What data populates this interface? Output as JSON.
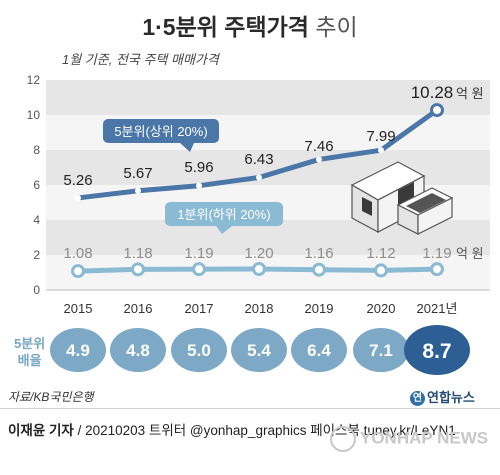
{
  "title": {
    "bold": "1·5분위 주택가격",
    "light": "추이"
  },
  "subtitle": "1월 기준, 전국 주택 매매가격",
  "value_unit": "억 원",
  "ratio_label": [
    "5분위",
    "배율"
  ],
  "source": "자료/KB국민은행",
  "brand": {
    "logo": "연",
    "name": "연합뉴스"
  },
  "credit": {
    "author": "이재윤 기자",
    "rest": " / 20210203   트위터 @yonhap_graphics  페이스북 tuney.kr/LeYN1"
  },
  "watermark": "YONHAP NEWS",
  "chart_data": {
    "type": "line",
    "categories": [
      "2015",
      "2016",
      "2017",
      "2018",
      "2019",
      "2020",
      "2021년"
    ],
    "series": [
      {
        "name": "5분위(상위 20%)",
        "values": [
          5.26,
          5.67,
          5.96,
          6.43,
          7.46,
          7.99,
          10.28
        ],
        "labels": [
          "5.26",
          "5.67",
          "5.96",
          "6.43",
          "7.46",
          "7.99",
          "10.28"
        ],
        "color": "#4a76a8"
      },
      {
        "name": "1분위(하위 20%)",
        "values": [
          1.08,
          1.18,
          1.19,
          1.2,
          1.16,
          1.12,
          1.19
        ],
        "labels": [
          "1.08",
          "1.18",
          "1.19",
          "1.20",
          "1.16",
          "1.12",
          "1.19"
        ],
        "color": "#8bbad4"
      }
    ],
    "ratio": {
      "values": [
        4.9,
        4.8,
        5.0,
        5.4,
        6.4,
        7.1,
        8.7
      ],
      "labels": [
        "4.9",
        "4.8",
        "5.0",
        "5.4",
        "6.4",
        "7.1",
        "8.7"
      ]
    },
    "yticks": [
      "0",
      "2",
      "4",
      "6",
      "8",
      "10",
      "12"
    ],
    "ylim": [
      0,
      12
    ],
    "grid": "alternating bands"
  }
}
